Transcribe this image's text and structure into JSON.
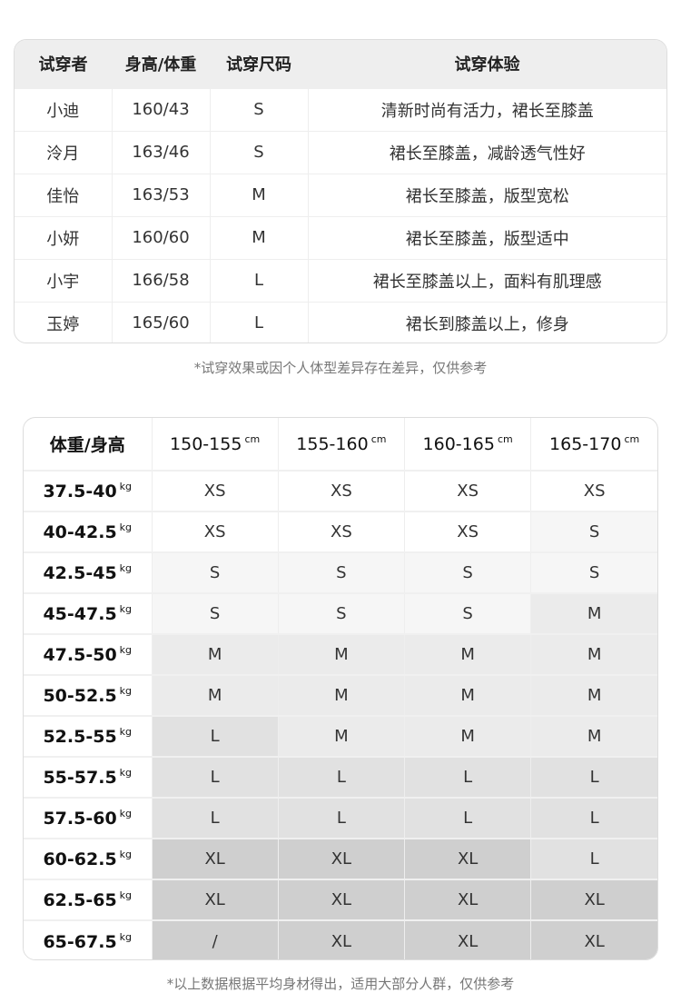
{
  "tryon": {
    "headers": [
      "试穿者",
      "身高/体重",
      "试穿尺码",
      "试穿体验"
    ],
    "rows": [
      [
        "小迪",
        "160/43",
        "S",
        "清新时尚有活力，裙长至膝盖"
      ],
      [
        "泠月",
        "163/46",
        "S",
        "裙长至膝盖，减龄透气性好"
      ],
      [
        "佳怡",
        "163/53",
        "M",
        "裙长至膝盖，版型宽松"
      ],
      [
        "小妍",
        "160/60",
        "M",
        "裙长至膝盖，版型适中"
      ],
      [
        "小宇",
        "166/58",
        "L",
        "裙长至膝盖以上，面料有肌理感"
      ],
      [
        "玉婷",
        "165/60",
        "L",
        "裙长到膝盖以上，修身"
      ]
    ],
    "note": "*试穿效果或因个人体型差异存在差异，仅供参考"
  },
  "size_chart": {
    "corner": "体重/身高",
    "height_unit": "cm",
    "weight_unit": "kg",
    "heights": [
      "150-155",
      "155-160",
      "160-165",
      "165-170"
    ],
    "rows": [
      {
        "weight": "37.5-40",
        "sizes": [
          "XS",
          "XS",
          "XS",
          "XS"
        ]
      },
      {
        "weight": "40-42.5",
        "sizes": [
          "XS",
          "XS",
          "XS",
          "S"
        ]
      },
      {
        "weight": "42.5-45",
        "sizes": [
          "S",
          "S",
          "S",
          "S"
        ]
      },
      {
        "weight": "45-47.5",
        "sizes": [
          "S",
          "S",
          "S",
          "M"
        ]
      },
      {
        "weight": "47.5-50",
        "sizes": [
          "M",
          "M",
          "M",
          "M"
        ]
      },
      {
        "weight": "50-52.5",
        "sizes": [
          "M",
          "M",
          "M",
          "M"
        ]
      },
      {
        "weight": "52.5-55",
        "sizes": [
          "L",
          "M",
          "M",
          "M"
        ]
      },
      {
        "weight": "55-57.5",
        "sizes": [
          "L",
          "L",
          "L",
          "L"
        ]
      },
      {
        "weight": "57.5-60",
        "sizes": [
          "L",
          "L",
          "L",
          "L"
        ]
      },
      {
        "weight": "60-62.5",
        "sizes": [
          "XL",
          "XL",
          "XL",
          "L"
        ]
      },
      {
        "weight": "62.5-65",
        "sizes": [
          "XL",
          "XL",
          "XL",
          "XL"
        ]
      },
      {
        "weight": "65-67.5",
        "sizes": [
          "/",
          "XL",
          "XL",
          "XL"
        ]
      }
    ],
    "size_colors": {
      "XS": "#ffffff",
      "S": "#f6f6f6",
      "M": "#ebebeb",
      "L": "#e1e1e1",
      "XL": "#cfcfcf",
      "/": "#cfcfcf"
    },
    "note": "*以上数据根据平均身材得出，适用大部分人群，仅供参考"
  }
}
